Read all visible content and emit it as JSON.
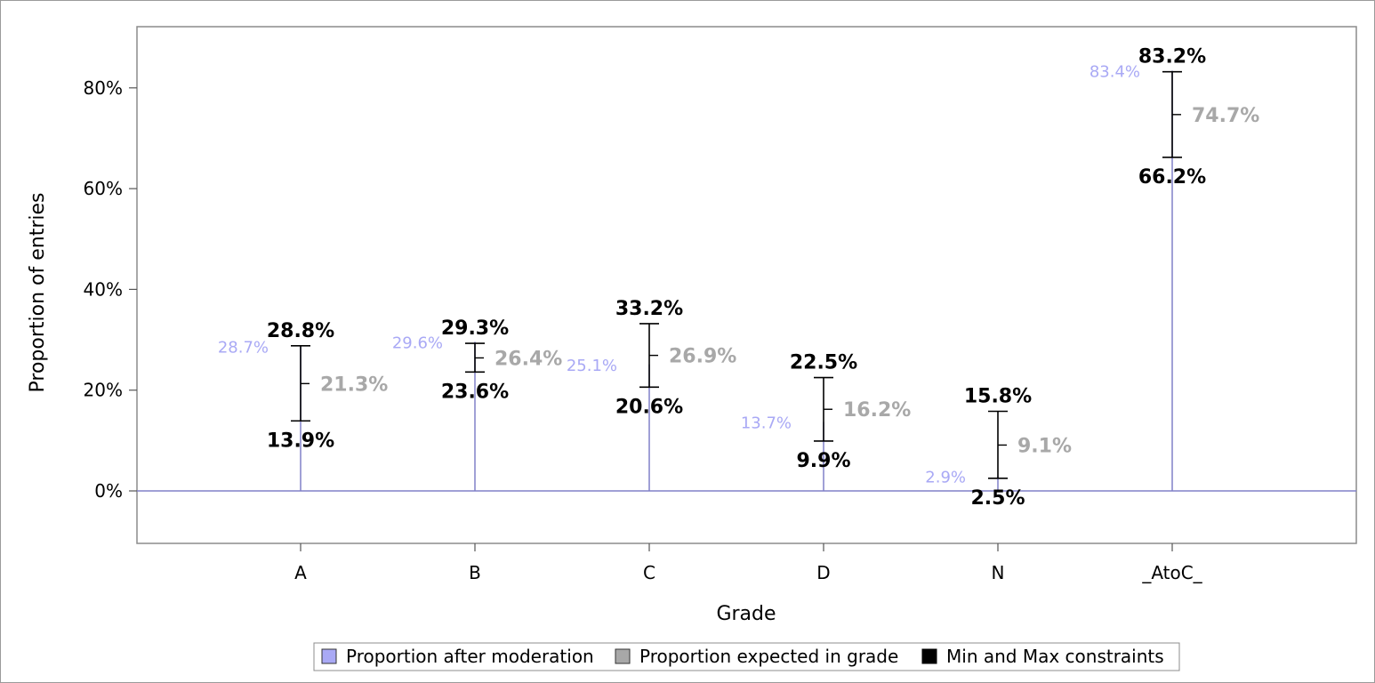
{
  "chart_data": {
    "type": "needle-with-error-bars",
    "xlabel": "Grade",
    "ylabel": "Proportion of entries",
    "ylim": [
      -10,
      92
    ],
    "yticks": [
      0,
      20,
      40,
      60,
      80
    ],
    "ytick_labels": [
      "0%",
      "20%",
      "40%",
      "60%",
      "80%"
    ],
    "grid": false,
    "legend_position": "bottom",
    "categories": [
      "A",
      "B",
      "C",
      "D",
      "N",
      "_AtoC_"
    ],
    "series": [
      {
        "name": "Proportion after moderation",
        "values": [
          28.7,
          29.6,
          25.1,
          13.7,
          2.9,
          83.4
        ],
        "labels": [
          "28.7%",
          "29.6%",
          "25.1%",
          "13.7%",
          "2.9%",
          "83.4%"
        ],
        "color": "#a9a9f5",
        "line_color": "#8080c8"
      },
      {
        "name": "Proportion expected in grade",
        "values": [
          21.3,
          26.4,
          26.9,
          16.2,
          9.1,
          74.7
        ],
        "labels": [
          "21.3%",
          "26.4%",
          "26.9%",
          "16.2%",
          "9.1%",
          "74.7%"
        ],
        "color": "#a8a8a8"
      },
      {
        "name": "Min and Max constraints",
        "min": [
          13.9,
          23.6,
          20.6,
          9.9,
          2.5,
          66.2
        ],
        "max": [
          28.8,
          29.3,
          33.2,
          22.5,
          15.8,
          83.2
        ],
        "min_labels": [
          "13.9%",
          "23.6%",
          "20.6%",
          "9.9%",
          "2.5%",
          "66.2%"
        ],
        "max_labels": [
          "28.8%",
          "29.3%",
          "33.2%",
          "22.5%",
          "15.8%",
          "83.2%"
        ],
        "color": "#000000"
      }
    ]
  }
}
